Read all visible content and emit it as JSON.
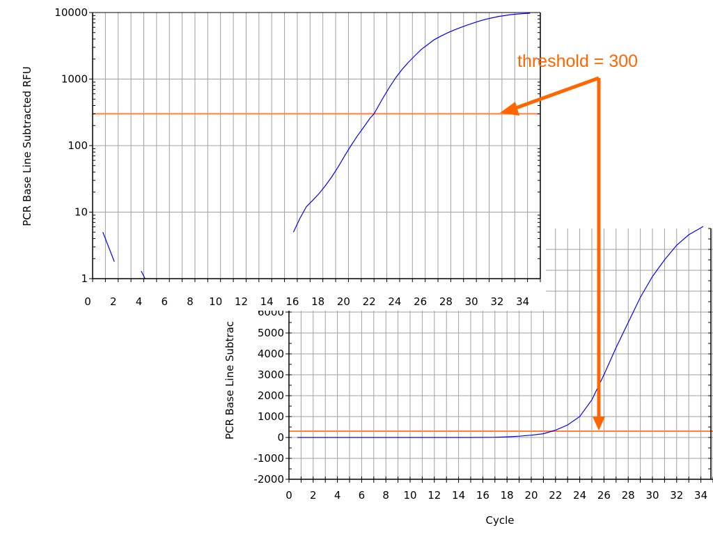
{
  "chart_data": [
    {
      "type": "line",
      "name": "log",
      "xlabel": "",
      "ylabel": "PCR Base Line Subtracted RFU",
      "yscale": "log",
      "xlim": [
        0,
        35
      ],
      "ylim": [
        1,
        10000
      ],
      "x_ticks": [
        "0",
        "2",
        "4",
        "6",
        "8",
        "10",
        "12",
        "14",
        "16",
        "18",
        "20",
        "22",
        "24",
        "26",
        "28",
        "30",
        "32",
        "34"
      ],
      "y_ticks": [
        "1",
        "10",
        "100",
        "1000",
        "10000"
      ],
      "grid": true,
      "series": [
        {
          "segments": [
            [
              [
                0.8,
                5
              ],
              [
                1.7,
                1.8
              ]
            ],
            [
              [
                3.8,
                1.3
              ],
              [
                4.1,
                1.0
              ]
            ],
            [
              [
                15.7,
                5
              ],
              [
                16.2,
                8
              ],
              [
                16.7,
                12
              ],
              [
                17.2,
                15
              ],
              [
                17.7,
                19
              ],
              [
                18.2,
                25
              ],
              [
                18.7,
                34
              ],
              [
                19.2,
                48
              ],
              [
                19.7,
                70
              ],
              [
                20.2,
                100
              ],
              [
                20.7,
                140
              ],
              [
                21.2,
                190
              ],
              [
                21.7,
                260
              ],
              [
                22,
                300
              ],
              [
                22.7,
                520
              ],
              [
                23.2,
                750
              ],
              [
                23.7,
                1050
              ],
              [
                24.2,
                1400
              ],
              [
                24.7,
                1800
              ],
              [
                25.2,
                2250
              ],
              [
                25.7,
                2800
              ],
              [
                26.2,
                3300
              ],
              [
                26.7,
                3900
              ],
              [
                27.2,
                4400
              ],
              [
                27.7,
                4900
              ],
              [
                28.2,
                5400
              ],
              [
                28.7,
                5900
              ],
              [
                29.2,
                6400
              ],
              [
                29.7,
                6900
              ],
              [
                30.2,
                7400
              ],
              [
                30.7,
                7900
              ],
              [
                31.2,
                8300
              ],
              [
                31.7,
                8700
              ],
              [
                32.2,
                9000
              ],
              [
                32.7,
                9300
              ],
              [
                33.2,
                9500
              ],
              [
                33.7,
                9650
              ],
              [
                34.2,
                9750
              ]
            ]
          ]
        }
      ],
      "threshold": 300
    },
    {
      "type": "line",
      "name": "linear",
      "xlabel": "Cycle",
      "ylabel": "PCR Base Line Subtrac",
      "xlim": [
        0,
        35
      ],
      "ylim": [
        -2000,
        10000
      ],
      "x_ticks": [
        "0",
        "2",
        "4",
        "6",
        "8",
        "10",
        "12",
        "14",
        "16",
        "18",
        "20",
        "22",
        "24",
        "26",
        "28",
        "30",
        "32",
        "34"
      ],
      "y_ticks": [
        "-2000",
        "-1000",
        "0",
        "1000",
        "2000",
        "3000",
        "4000",
        "5000",
        "6000"
      ],
      "grid": true,
      "series": [
        {
          "segments": [
            [
              [
                0.7,
                0
              ],
              [
                5,
                0
              ],
              [
                10,
                0
              ],
              [
                15,
                0
              ],
              [
                17,
                10
              ],
              [
                18,
                30
              ],
              [
                19,
                60
              ],
              [
                20,
                110
              ],
              [
                21,
                180
              ],
              [
                22,
                350
              ],
              [
                23,
                600
              ],
              [
                24,
                1000
              ],
              [
                25,
                1800
              ],
              [
                26,
                3000
              ],
              [
                27,
                4300
              ],
              [
                28,
                5500
              ],
              [
                29,
                6700
              ],
              [
                30,
                7700
              ],
              [
                31,
                8500
              ],
              [
                32,
                9200
              ],
              [
                33,
                9700
              ],
              [
                34.2,
                10100
              ]
            ]
          ]
        }
      ],
      "threshold": 300
    }
  ],
  "annotation": {
    "text": "threshold = 300",
    "color": "#ff6600"
  },
  "colors": {
    "curve": "#0000ff",
    "threshold": "#ff8040",
    "arrow": "#ff6600",
    "grid": "#a0a0a0"
  }
}
